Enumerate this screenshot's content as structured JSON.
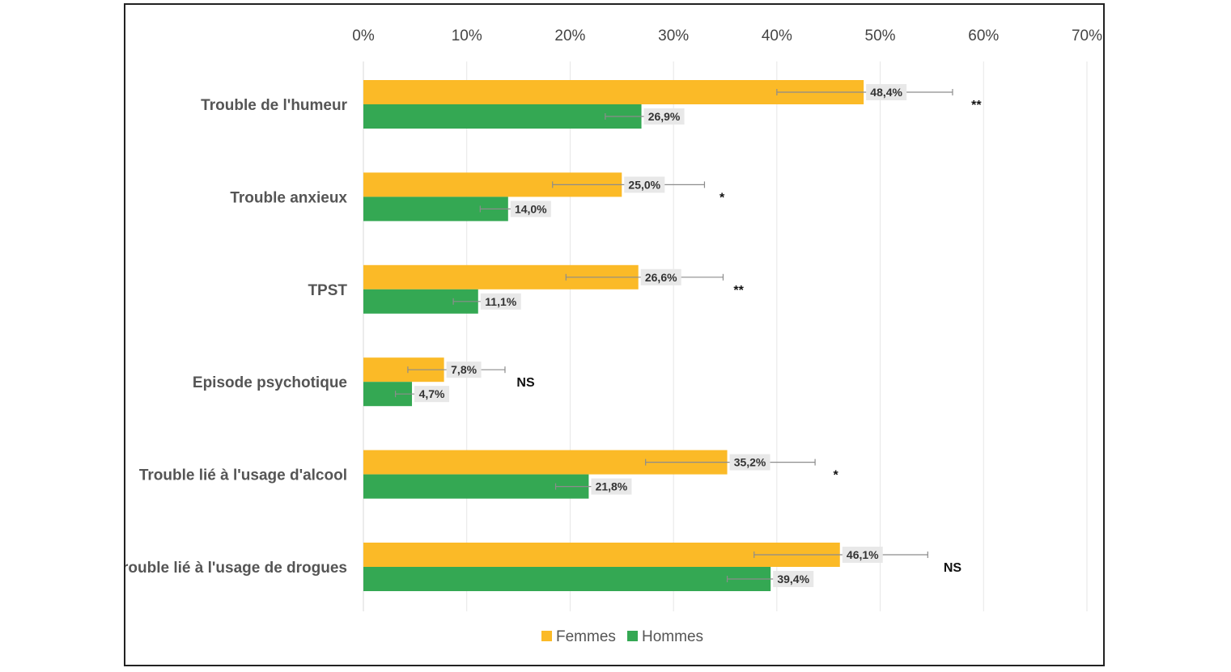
{
  "chart_data": {
    "type": "bar",
    "orientation": "horizontal",
    "title": "",
    "xlabel": "",
    "ylabel": "",
    "xlim": [
      0,
      70
    ],
    "x_ticks": [
      "0%",
      "10%",
      "20%",
      "30%",
      "40%",
      "50%",
      "60%",
      "70%"
    ],
    "x_axis_position": "top",
    "grid": true,
    "legend_position": "bottom",
    "categories": [
      "Trouble de l'humeur",
      "Trouble anxieux",
      "TPST",
      "Episode psychotique",
      "Trouble lié à l'usage d'alcool",
      "Trouble lié à l'usage de drogues"
    ],
    "series": [
      {
        "name": "Femmes",
        "color": "#FBBA27",
        "values": [
          48.4,
          25.0,
          26.6,
          7.8,
          35.2,
          46.1
        ],
        "labels": [
          "48,4%",
          "25,0%",
          "26,6%",
          "7,8%",
          "35,2%",
          "46,1%"
        ],
        "error_low": [
          40.0,
          18.3,
          19.6,
          4.3,
          27.3,
          37.8
        ],
        "error_high": [
          57.0,
          33.0,
          34.8,
          13.7,
          43.7,
          54.6
        ]
      },
      {
        "name": "Hommes",
        "color": "#34A853",
        "values": [
          26.9,
          14.0,
          11.1,
          4.7,
          21.8,
          39.4
        ],
        "labels": [
          "26,9%",
          "14,0%",
          "11,1%",
          "4,7%",
          "21,8%",
          "39,4%"
        ],
        "error_low": [
          23.4,
          11.3,
          8.7,
          3.1,
          18.6,
          35.2
        ],
        "error_high": [
          30.5,
          16.9,
          13.6,
          6.7,
          25.1,
          43.3
        ]
      }
    ],
    "significance": [
      {
        "label": "**",
        "x": 59.3
      },
      {
        "label": "*",
        "x": 34.7
      },
      {
        "label": "**",
        "x": 36.3
      },
      {
        "label": "NS",
        "x": 15.7
      },
      {
        "label": "*",
        "x": 45.7
      },
      {
        "label": "NS",
        "x": 57.0
      }
    ],
    "colors": {
      "grid": "#E6E6E6",
      "axis": "#D9D9D9",
      "error_bar": "#8C8C8C",
      "label_bg": "#E8E8E8"
    }
  }
}
